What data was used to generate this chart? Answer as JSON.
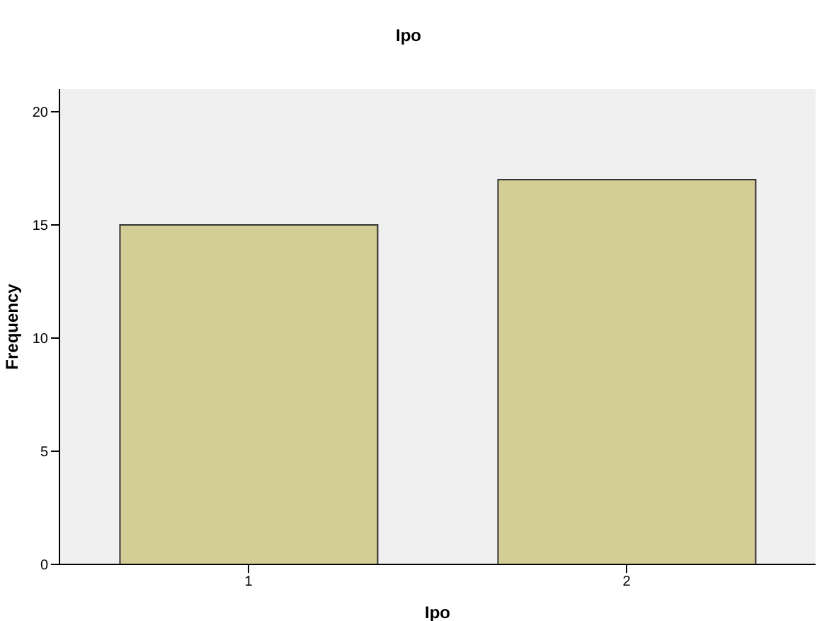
{
  "chart_data": {
    "type": "bar",
    "title": "Ipo",
    "xlabel": "Ipo",
    "ylabel": "Frequency",
    "categories": [
      "1",
      "2"
    ],
    "values": [
      15,
      17
    ],
    "color": "#d3ce96",
    "ylim": [
      0,
      21
    ],
    "yticks": [
      0,
      5,
      10,
      15,
      20
    ],
    "grid": false
  }
}
